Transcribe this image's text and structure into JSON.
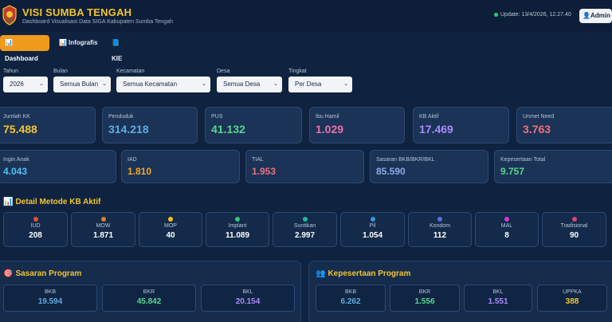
{
  "header": {
    "title": "VISI SUMBA TENGAH",
    "subtitle": "Dashboard Visualisasi Data SIGA Kabupaten Sumba Tengah",
    "update": "Update: 13/4/2026, 12.27.40",
    "admin_label": "Admin",
    "admin_icon": "user-icon"
  },
  "tabs": [
    {
      "label": "Dashboard",
      "icon": "chart-icon",
      "active": true
    },
    {
      "label": "Infografis",
      "icon": "chart-icon",
      "active": false
    },
    {
      "label": "KIE",
      "icon": "book-icon",
      "active": false
    }
  ],
  "filters": [
    {
      "label": "Tahun",
      "value": "2026"
    },
    {
      "label": "Bulan",
      "value": "Semua Bulan"
    },
    {
      "label": "Kecamatan",
      "value": "Semua Kecamatan"
    },
    {
      "label": "Desa",
      "value": "Semua Desa"
    },
    {
      "label": "Tingkat",
      "value": "Per Desa"
    }
  ],
  "stats_row1": [
    {
      "label": "Jumlah KK",
      "value": "75.488",
      "color": "#f4c430"
    },
    {
      "label": "Penduduk",
      "value": "314.218",
      "color": "#5dade2"
    },
    {
      "label": "PUS",
      "value": "41.132",
      "color": "#58d68d"
    },
    {
      "label": "Ibu Hamil",
      "value": "1.029",
      "color": "#ec70b0"
    },
    {
      "label": "KB Aktif",
      "value": "17.469",
      "color": "#a78bfa"
    },
    {
      "label": "Unmet Need",
      "value": "3.763",
      "color": "#f1707a"
    }
  ],
  "stats_row2": [
    {
      "label": "Ingin Anak",
      "value": "4.043",
      "color": "#4fc3f7"
    },
    {
      "label": "IAD",
      "value": "1.810",
      "color": "#f5a623"
    },
    {
      "label": "TIAL",
      "value": "1.953",
      "color": "#f1707a"
    },
    {
      "label": "Sasaran BKB/BKR/BKL",
      "value": "85.590",
      "color": "#8fa9e8"
    },
    {
      "label": "Kepesertaan Total",
      "value": "9.757",
      "color": "#58d68d"
    }
  ],
  "metode": {
    "title": "Detail Metode KB Aktif",
    "icon": "chart-icon",
    "items": [
      {
        "label": "IUD",
        "value": "208",
        "color": "#e74c3c"
      },
      {
        "label": "MOW",
        "value": "1.871",
        "color": "#e67e22"
      },
      {
        "label": "MOP",
        "value": "40",
        "color": "#f1c40f"
      },
      {
        "label": "Implant",
        "value": "11.089",
        "color": "#2ecc71"
      },
      {
        "label": "Suntikan",
        "value": "2.997",
        "color": "#1abc9c"
      },
      {
        "label": "Pil",
        "value": "1.054",
        "color": "#3498db"
      },
      {
        "label": "Kondom",
        "value": "112",
        "color": "#5b6ee1"
      },
      {
        "label": "MAL",
        "value": "8",
        "color": "#d63ad6"
      },
      {
        "label": "Tradisional",
        "value": "90",
        "color": "#e0457b"
      }
    ]
  },
  "sasaran": {
    "title": "Sasaran Program",
    "icon": "target-icon",
    "items": [
      {
        "label": "BKB",
        "value": "19.594",
        "color": "#5dade2"
      },
      {
        "label": "BKR",
        "value": "45.842",
        "color": "#58d68d"
      },
      {
        "label": "BKL",
        "value": "20.154",
        "color": "#a78bfa"
      }
    ]
  },
  "kepesertaan": {
    "title": "Kepesertaan Program",
    "icon": "people-icon",
    "items": [
      {
        "label": "BKB",
        "value": "6.262",
        "color": "#5dade2"
      },
      {
        "label": "BKR",
        "value": "1.556",
        "color": "#58d68d"
      },
      {
        "label": "BKL",
        "value": "1.551",
        "color": "#a78bfa"
      },
      {
        "label": "UPPKA",
        "value": "388",
        "color": "#f4c430"
      }
    ]
  }
}
